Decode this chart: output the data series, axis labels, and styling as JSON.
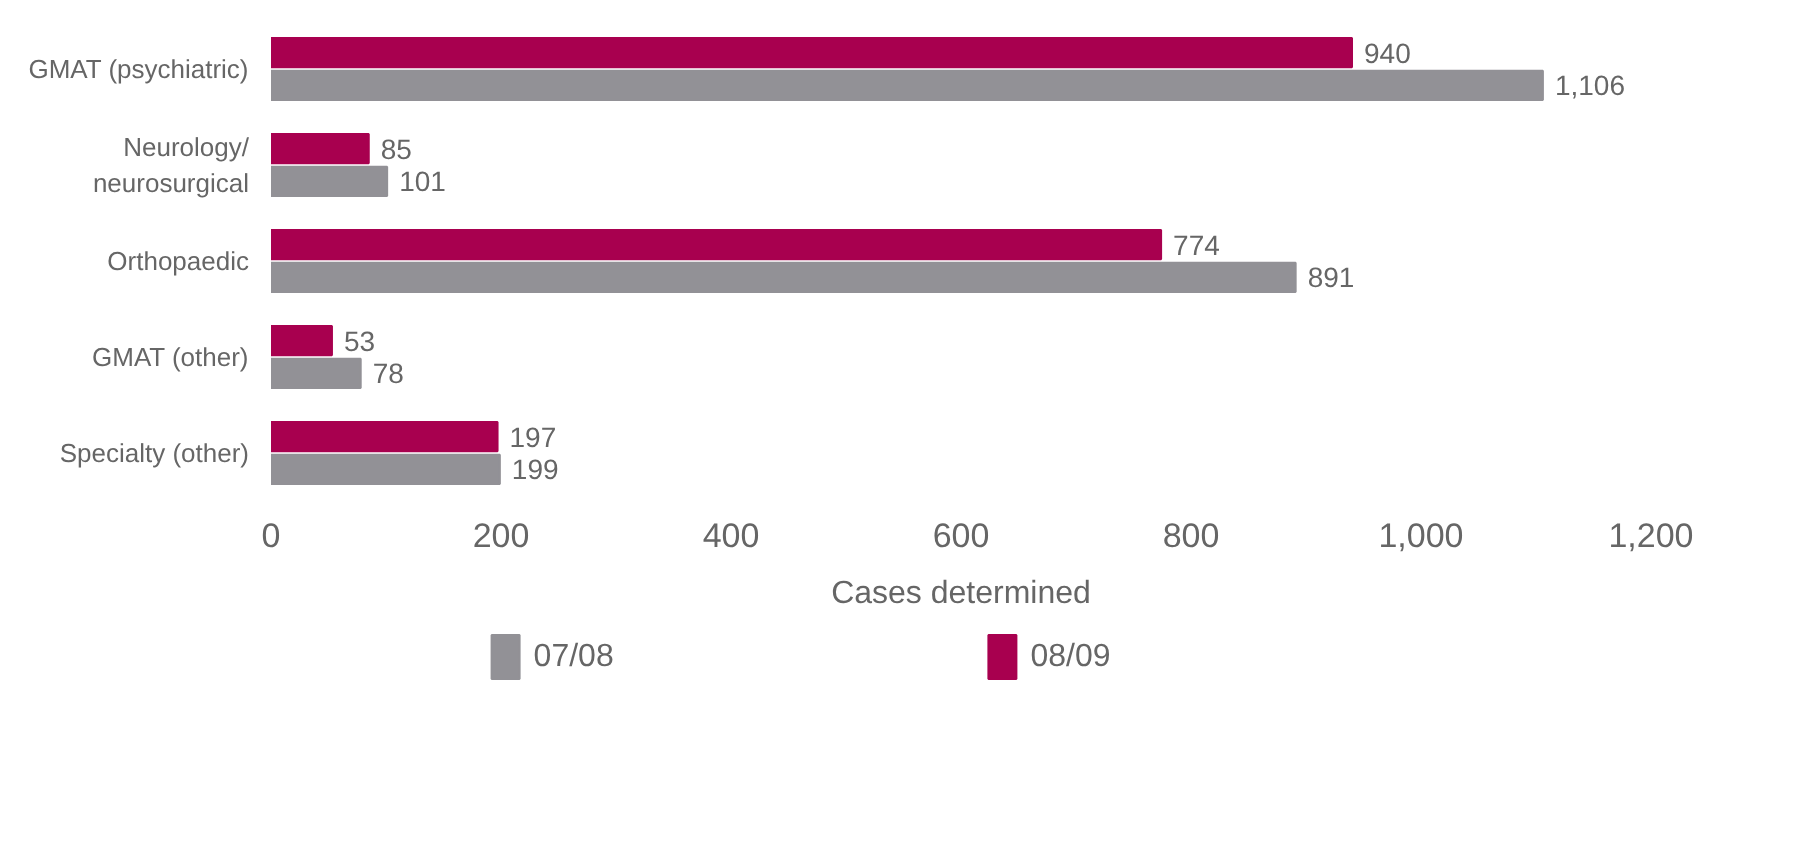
{
  "chart_data": {
    "type": "bar",
    "orientation": "horizontal",
    "xlabel": "Cases determined",
    "categories": [
      "GMAT (psychiatric)",
      "Neurology/\nneurosurgical",
      "Orthopaedic",
      "GMAT (other)",
      "Specialty (other)"
    ],
    "series": [
      {
        "name": "07/08",
        "color": "#929196",
        "values": [
          1106,
          101,
          891,
          78,
          199
        ],
        "value_labels": [
          "1,106",
          "101",
          "891",
          "78",
          "199"
        ]
      },
      {
        "name": "08/09",
        "color": "#a8004f",
        "values": [
          940,
          85,
          774,
          53,
          197
        ],
        "value_labels": [
          "940",
          "85",
          "774",
          "53",
          "197"
        ]
      }
    ],
    "xlim": [
      0,
      1200
    ],
    "xticks": [
      0,
      200,
      400,
      600,
      800,
      {
        "value": 1000,
        "label": "1,000"
      },
      {
        "value": 1200,
        "label": "1,200"
      }
    ],
    "grid": false,
    "legend": "bottom"
  }
}
